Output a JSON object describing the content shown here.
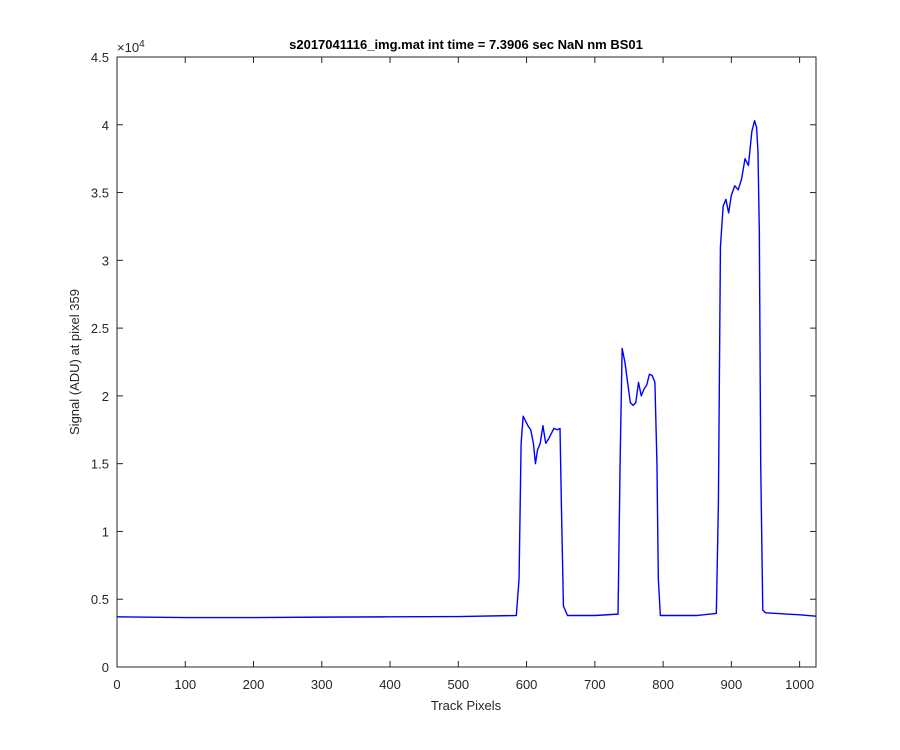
{
  "chart_data": {
    "type": "line",
    "title": "s2017041116_img.mat int time = 7.3906 sec  NaN nm BS01",
    "xlabel": "Track Pixels",
    "ylabel": "Signal (ADU) at pixel 359",
    "xlim": [
      0,
      1024
    ],
    "ylim": [
      0,
      45000
    ],
    "y_exponent_label": "×10",
    "y_exponent_power": "4",
    "x_ticks": [
      0,
      100,
      200,
      300,
      400,
      500,
      600,
      700,
      800,
      900,
      1000
    ],
    "x_tick_labels": [
      "0",
      "100",
      "200",
      "300",
      "400",
      "500",
      "600",
      "700",
      "800",
      "900",
      "1000"
    ],
    "y_ticks": [
      0,
      5000,
      10000,
      15000,
      20000,
      25000,
      30000,
      35000,
      40000,
      45000
    ],
    "y_tick_labels": [
      "0",
      "0.5",
      "1",
      "1.5",
      "2",
      "2.5",
      "3",
      "3.5",
      "4",
      "4.5"
    ],
    "grid": false,
    "line_color": "#0000ff",
    "series": [
      {
        "x": [
          0,
          100,
          200,
          300,
          400,
          500,
          585,
          589,
          592,
          595,
          598,
          602,
          606,
          610,
          613,
          616,
          620,
          624,
          628,
          632,
          636,
          640,
          645,
          649,
          651,
          654,
          660,
          700,
          734,
          737,
          740,
          744,
          748,
          752,
          756,
          760,
          764,
          768,
          772,
          776,
          780,
          784,
          788,
          791,
          793,
          796,
          800,
          850,
          878,
          881,
          884,
          888,
          892,
          896,
          900,
          905,
          910,
          915,
          920,
          925,
          930,
          934,
          937,
          939,
          941,
          943,
          946,
          950,
          1000,
          1024
        ],
        "y": [
          3700,
          3650,
          3650,
          3680,
          3700,
          3720,
          3800,
          6500,
          16500,
          18500,
          18200,
          17800,
          17500,
          16500,
          15000,
          16000,
          16500,
          17800,
          16500,
          16800,
          17200,
          17600,
          17500,
          17600,
          12000,
          4500,
          3800,
          3800,
          3900,
          15000,
          23500,
          22500,
          21000,
          19500,
          19300,
          19500,
          21000,
          20000,
          20500,
          20800,
          21600,
          21500,
          21000,
          15000,
          6500,
          3800,
          3800,
          3800,
          3950,
          12000,
          31000,
          34000,
          34500,
          33500,
          34800,
          35500,
          35200,
          36000,
          37500,
          37000,
          39500,
          40300,
          39800,
          38000,
          32000,
          15000,
          4200,
          4000,
          3850,
          3750
        ]
      }
    ]
  }
}
